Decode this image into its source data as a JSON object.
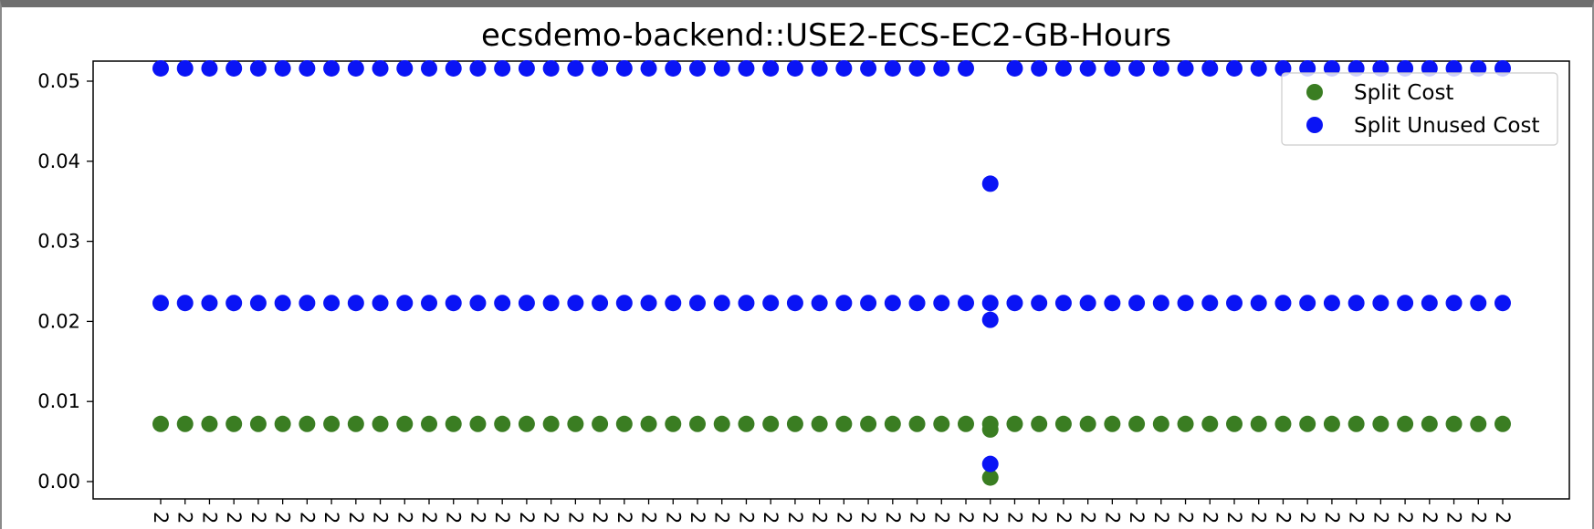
{
  "chart_data": {
    "type": "scatter",
    "title": "ecsdemo-backend::USE2-ECS-EC2-GB-Hours",
    "xlabel": "",
    "ylabel": "",
    "ylim": [
      -0.002,
      0.0525
    ],
    "yticks": [
      "0.00",
      "0.01",
      "0.02",
      "0.03",
      "0.04",
      "0.05"
    ],
    "ytick_values": [
      0,
      0.01,
      0.02,
      0.03,
      0.04,
      0.05
    ],
    "x_count": 56,
    "x_tick_label": "2",
    "grid": false,
    "legend": {
      "placement": "upper-right"
    },
    "series": [
      {
        "name": "Split Cost",
        "color": "#3a7d22",
        "rows": [
          {
            "y": 0.0072,
            "skip": []
          },
          {
            "y": 0.0065,
            "only": [
              34
            ]
          },
          {
            "y": 0.0005,
            "only": [
              34
            ]
          }
        ]
      },
      {
        "name": "Split Unused Cost",
        "color": "#0a14f5",
        "rows": [
          {
            "y": 0.0516,
            "skip": [
              34
            ]
          },
          {
            "y": 0.0223,
            "skip": []
          },
          {
            "y": 0.0372,
            "only": [
              34
            ]
          },
          {
            "y": 0.0202,
            "only": [
              34
            ]
          },
          {
            "y": 0.0022,
            "only": [
              34
            ]
          }
        ]
      }
    ]
  }
}
